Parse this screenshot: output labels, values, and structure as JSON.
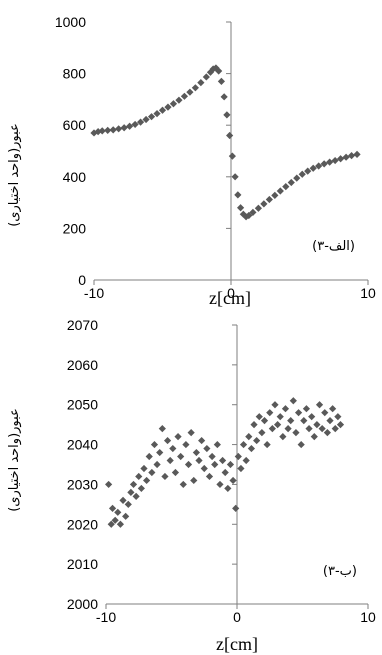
{
  "colors": {
    "marker": "#595959",
    "axis": "#7f7f7f",
    "text": "#000000"
  },
  "chart_data": [
    {
      "type": "scatter",
      "name": "panel-a",
      "panel_label": "(۳-الف)",
      "xlabel": "z[cm]",
      "ylabel": "عبور(واحد اختیاری)",
      "xlim": [
        -10,
        10
      ],
      "ylim": [
        0,
        1000
      ],
      "xticks": [
        -10,
        0,
        10
      ],
      "yticks": [
        0,
        200,
        400,
        600,
        800,
        1000
      ],
      "xtick_labels": [
        "-10",
        "0",
        "10"
      ],
      "ytick_labels": [
        "0",
        "200",
        "400",
        "600",
        "800",
        "1000"
      ],
      "grid": false,
      "marker": "diamond",
      "points": [
        [
          -10.0,
          570
        ],
        [
          -9.7,
          575
        ],
        [
          -9.4,
          578
        ],
        [
          -9.0,
          580
        ],
        [
          -8.6,
          582
        ],
        [
          -8.2,
          586
        ],
        [
          -7.8,
          590
        ],
        [
          -7.4,
          596
        ],
        [
          -7.0,
          603
        ],
        [
          -6.6,
          612
        ],
        [
          -6.2,
          622
        ],
        [
          -5.8,
          633
        ],
        [
          -5.4,
          645
        ],
        [
          -5.0,
          658
        ],
        [
          -4.6,
          670
        ],
        [
          -4.2,
          683
        ],
        [
          -3.8,
          697
        ],
        [
          -3.4,
          712
        ],
        [
          -3.0,
          728
        ],
        [
          -2.6,
          745
        ],
        [
          -2.2,
          765
        ],
        [
          -1.8,
          787
        ],
        [
          -1.5,
          805
        ],
        [
          -1.3,
          818
        ],
        [
          -1.1,
          822
        ],
        [
          -0.9,
          810
        ],
        [
          -0.7,
          770
        ],
        [
          -0.5,
          710
        ],
        [
          -0.3,
          640
        ],
        [
          -0.1,
          560
        ],
        [
          0.1,
          480
        ],
        [
          0.3,
          400
        ],
        [
          0.5,
          330
        ],
        [
          0.7,
          280
        ],
        [
          0.9,
          255
        ],
        [
          1.1,
          245
        ],
        [
          1.3,
          250
        ],
        [
          1.6,
          262
        ],
        [
          2.0,
          278
        ],
        [
          2.4,
          295
        ],
        [
          2.8,
          312
        ],
        [
          3.2,
          328
        ],
        [
          3.6,
          345
        ],
        [
          4.0,
          362
        ],
        [
          4.4,
          378
        ],
        [
          4.8,
          395
        ],
        [
          5.2,
          410
        ],
        [
          5.6,
          422
        ],
        [
          6.0,
          433
        ],
        [
          6.4,
          442
        ],
        [
          6.8,
          450
        ],
        [
          7.2,
          457
        ],
        [
          7.6,
          463
        ],
        [
          8.0,
          470
        ],
        [
          8.4,
          476
        ],
        [
          8.8,
          482
        ],
        [
          9.2,
          487
        ]
      ]
    },
    {
      "type": "scatter",
      "name": "panel-b",
      "panel_label": "(۳-ب)",
      "xlabel": "z[cm]",
      "ylabel": "عبور(واحد اختیاری)",
      "xlim": [
        -10,
        10
      ],
      "ylim": [
        2000,
        2070
      ],
      "xticks": [
        -10,
        0,
        10
      ],
      "yticks": [
        2000,
        2010,
        2020,
        2030,
        2040,
        2050,
        2060,
        2070
      ],
      "xtick_labels": [
        "-10",
        "0",
        "10"
      ],
      "ytick_labels": [
        "2000",
        "2010",
        "2020",
        "2030",
        "2040",
        "2050",
        "2060",
        "2070"
      ],
      "grid": false,
      "marker": "diamond",
      "points": [
        [
          -9.8,
          2030
        ],
        [
          -9.6,
          2020
        ],
        [
          -9.5,
          2024
        ],
        [
          -9.3,
          2021
        ],
        [
          -9.1,
          2023
        ],
        [
          -8.9,
          2020
        ],
        [
          -8.7,
          2026
        ],
        [
          -8.5,
          2022
        ],
        [
          -8.3,
          2025
        ],
        [
          -8.1,
          2028
        ],
        [
          -7.9,
          2030
        ],
        [
          -7.7,
          2027
        ],
        [
          -7.5,
          2032
        ],
        [
          -7.3,
          2029
        ],
        [
          -7.1,
          2034
        ],
        [
          -6.9,
          2031
        ],
        [
          -6.7,
          2037
        ],
        [
          -6.5,
          2033
        ],
        [
          -6.3,
          2040
        ],
        [
          -6.1,
          2035
        ],
        [
          -5.9,
          2038
        ],
        [
          -5.7,
          2044
        ],
        [
          -5.5,
          2032
        ],
        [
          -5.3,
          2041
        ],
        [
          -5.1,
          2036
        ],
        [
          -4.9,
          2039
        ],
        [
          -4.7,
          2033
        ],
        [
          -4.5,
          2042
        ],
        [
          -4.3,
          2037
        ],
        [
          -4.1,
          2030
        ],
        [
          -3.9,
          2040
        ],
        [
          -3.7,
          2035
        ],
        [
          -3.5,
          2043
        ],
        [
          -3.3,
          2031
        ],
        [
          -3.1,
          2038
        ],
        [
          -2.9,
          2036
        ],
        [
          -2.7,
          2041
        ],
        [
          -2.5,
          2034
        ],
        [
          -2.3,
          2039
        ],
        [
          -2.1,
          2032
        ],
        [
          -1.9,
          2037
        ],
        [
          -1.7,
          2035
        ],
        [
          -1.5,
          2040
        ],
        [
          -1.3,
          2030
        ],
        [
          -1.1,
          2036
        ],
        [
          -0.9,
          2033
        ],
        [
          -0.7,
          2029
        ],
        [
          -0.5,
          2035
        ],
        [
          -0.3,
          2031
        ],
        [
          -0.1,
          2024
        ],
        [
          0.1,
          2037
        ],
        [
          0.3,
          2034
        ],
        [
          0.5,
          2040
        ],
        [
          0.7,
          2036
        ],
        [
          0.9,
          2042
        ],
        [
          1.1,
          2039
        ],
        [
          1.3,
          2045
        ],
        [
          1.5,
          2041
        ],
        [
          1.7,
          2047
        ],
        [
          1.9,
          2043
        ],
        [
          2.1,
          2046
        ],
        [
          2.3,
          2040
        ],
        [
          2.5,
          2048
        ],
        [
          2.7,
          2044
        ],
        [
          2.9,
          2050
        ],
        [
          3.1,
          2045
        ],
        [
          3.3,
          2047
        ],
        [
          3.5,
          2042
        ],
        [
          3.7,
          2049
        ],
        [
          3.9,
          2044
        ],
        [
          4.1,
          2046
        ],
        [
          4.3,
          2051
        ],
        [
          4.5,
          2043
        ],
        [
          4.7,
          2048
        ],
        [
          4.9,
          2040
        ],
        [
          5.1,
          2046
        ],
        [
          5.3,
          2049
        ],
        [
          5.5,
          2044
        ],
        [
          5.7,
          2047
        ],
        [
          5.9,
          2042
        ],
        [
          6.1,
          2045
        ],
        [
          6.3,
          2050
        ],
        [
          6.5,
          2044
        ],
        [
          6.7,
          2048
        ],
        [
          6.9,
          2043
        ],
        [
          7.1,
          2046
        ],
        [
          7.3,
          2049
        ],
        [
          7.5,
          2044
        ],
        [
          7.7,
          2047
        ],
        [
          7.9,
          2045
        ]
      ]
    }
  ]
}
